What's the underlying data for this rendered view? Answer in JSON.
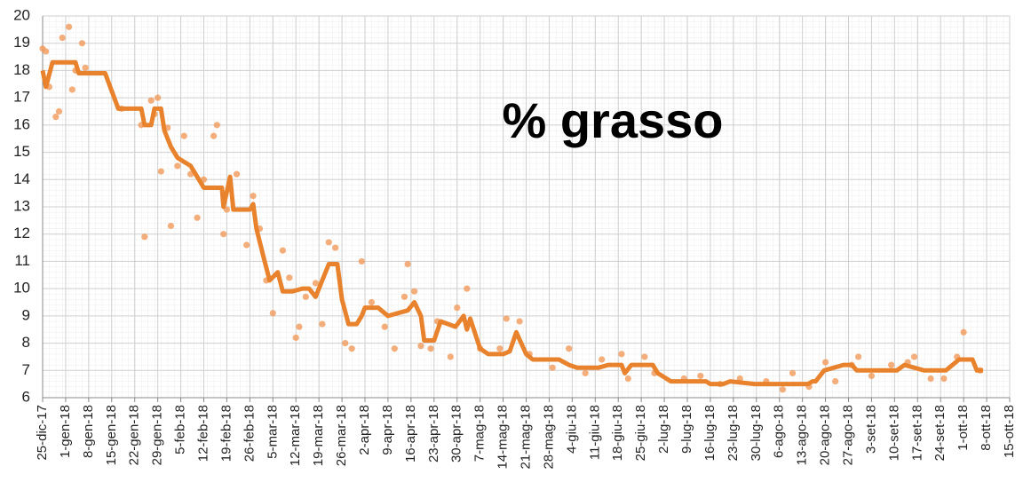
{
  "chart_data": {
    "type": "line",
    "title": "% grasso",
    "xlim": [
      0,
      294
    ],
    "ylim": [
      6,
      20
    ],
    "yticks": [
      6,
      7,
      8,
      9,
      10,
      11,
      12,
      13,
      14,
      15,
      16,
      17,
      18,
      19,
      20
    ],
    "xticks": [
      {
        "value": 0,
        "label": "25-dic-17"
      },
      {
        "value": 7,
        "label": "1-gen-18"
      },
      {
        "value": 14,
        "label": "8-gen-18"
      },
      {
        "value": 21,
        "label": "15-gen-18"
      },
      {
        "value": 28,
        "label": "22-gen-18"
      },
      {
        "value": 35,
        "label": "29-gen-18"
      },
      {
        "value": 42,
        "label": "5-feb-18"
      },
      {
        "value": 49,
        "label": "12-feb-18"
      },
      {
        "value": 56,
        "label": "19-feb-18"
      },
      {
        "value": 63,
        "label": "26-feb-18"
      },
      {
        "value": 70,
        "label": "5-mar-18"
      },
      {
        "value": 77,
        "label": "12-mar-18"
      },
      {
        "value": 84,
        "label": "19-mar-18"
      },
      {
        "value": 91,
        "label": "26-mar-18"
      },
      {
        "value": 98,
        "label": "2-apr-18"
      },
      {
        "value": 105,
        "label": "9-apr-18"
      },
      {
        "value": 112,
        "label": "16-apr-18"
      },
      {
        "value": 119,
        "label": "23-apr-18"
      },
      {
        "value": 126,
        "label": "30-apr-18"
      },
      {
        "value": 133,
        "label": "7-mag-18"
      },
      {
        "value": 140,
        "label": "14-mag-18"
      },
      {
        "value": 147,
        "label": "21-mag-18"
      },
      {
        "value": 154,
        "label": "28-mag-18"
      },
      {
        "value": 161,
        "label": "4-giu-18"
      },
      {
        "value": 168,
        "label": "11-giu-18"
      },
      {
        "value": 175,
        "label": "18-giu-18"
      },
      {
        "value": 182,
        "label": "25-giu-18"
      },
      {
        "value": 189,
        "label": "2-lug-18"
      },
      {
        "value": 196,
        "label": "9-lug-18"
      },
      {
        "value": 203,
        "label": "16-lug-18"
      },
      {
        "value": 210,
        "label": "23-lug-18"
      },
      {
        "value": 217,
        "label": "30-lug-18"
      },
      {
        "value": 224,
        "label": "6-ago-18"
      },
      {
        "value": 231,
        "label": "13-ago-18"
      },
      {
        "value": 238,
        "label": "20-ago-18"
      },
      {
        "value": 245,
        "label": "27-ago-18"
      },
      {
        "value": 252,
        "label": "3-set-18"
      },
      {
        "value": 259,
        "label": "10-set-18"
      },
      {
        "value": 266,
        "label": "17-set-18"
      },
      {
        "value": 273,
        "label": "24-set-18"
      },
      {
        "value": 280,
        "label": "1-ott-18"
      },
      {
        "value": 287,
        "label": "8-ott-18"
      },
      {
        "value": 294,
        "label": "15-ott-18"
      }
    ],
    "grid": true,
    "series": [
      {
        "type": "line",
        "color": "#e8822c",
        "x": [
          0,
          1,
          3,
          10,
          11,
          19,
          23,
          30,
          31,
          33,
          34,
          36,
          37,
          39,
          41,
          45,
          49,
          54.5,
          55,
          57,
          58,
          63,
          64,
          65,
          67.5,
          69,
          71.5,
          73,
          76,
          79,
          81,
          83,
          87,
          89.6,
          91,
          93,
          95.5,
          97,
          98,
          102,
          105,
          111,
          113,
          115,
          116,
          119,
          121,
          125.5,
          128,
          129,
          130,
          133,
          135.5,
          140,
          142,
          144,
          147,
          149,
          157,
          160,
          162.5,
          169,
          172,
          176,
          177,
          179,
          185.5,
          187,
          191,
          201.7,
          203,
          207,
          209,
          216.5,
          232.7,
          234,
          235,
          237.6,
          243.5,
          246,
          247.5,
          259.7,
          262,
          268,
          274.6,
          278.6,
          282.7,
          284,
          285.9
        ],
        "values": [
          18.0,
          17.4,
          18.3,
          18.3,
          17.9,
          17.9,
          16.6,
          16.6,
          16.0,
          16.0,
          16.6,
          16.6,
          15.8,
          15.2,
          14.8,
          14.5,
          13.7,
          13.7,
          13.0,
          14.1,
          12.9,
          12.9,
          13.1,
          12.2,
          11.0,
          10.3,
          10.6,
          9.9,
          9.9,
          10.0,
          10.0,
          9.7,
          10.9,
          10.9,
          9.6,
          8.7,
          8.7,
          9.0,
          9.3,
          9.3,
          9.0,
          9.2,
          9.5,
          9.0,
          8.1,
          8.1,
          8.8,
          8.6,
          9.0,
          8.5,
          8.9,
          7.8,
          7.6,
          7.6,
          7.7,
          8.4,
          7.6,
          7.4,
          7.4,
          7.2,
          7.1,
          7.1,
          7.2,
          7.2,
          6.9,
          7.2,
          7.2,
          6.9,
          6.6,
          6.6,
          6.5,
          6.5,
          6.6,
          6.5,
          6.5,
          6.6,
          6.6,
          7.0,
          7.2,
          7.2,
          7.0,
          7.0,
          7.2,
          7.0,
          7.0,
          7.4,
          7.4,
          7.0,
          7.0
        ]
      },
      {
        "type": "scatter",
        "color": "#f19a5a",
        "x": [
          0,
          1,
          2,
          4,
          5,
          6,
          8,
          9,
          10,
          12,
          13,
          24,
          30,
          31,
          33,
          34,
          35,
          36,
          38,
          39,
          41,
          43,
          45,
          47,
          49,
          52,
          53,
          55,
          56,
          59,
          62,
          64,
          66,
          68,
          70,
          73,
          75,
          77,
          78,
          80,
          83,
          85,
          87,
          89,
          92,
          94,
          97,
          100,
          104,
          107,
          110,
          111,
          113,
          115,
          118,
          120,
          124,
          126,
          129,
          133,
          139,
          141,
          145,
          148,
          155,
          160,
          165,
          170,
          176,
          178,
          183,
          186,
          195,
          200,
          206,
          212,
          220,
          225,
          228,
          233,
          238,
          241,
          246,
          248,
          252,
          258,
          263,
          265,
          270,
          274,
          278,
          280,
          285
        ],
        "values": [
          18.8,
          18.7,
          17.4,
          16.3,
          16.5,
          19.2,
          19.6,
          17.3,
          18.0,
          19.0,
          18.1,
          16.6,
          16.0,
          11.9,
          16.9,
          16.4,
          17.0,
          14.3,
          15.9,
          12.3,
          14.5,
          15.6,
          14.2,
          12.6,
          14.0,
          15.6,
          16.0,
          12.0,
          12.9,
          14.2,
          11.6,
          13.4,
          12.2,
          10.3,
          9.1,
          11.4,
          10.4,
          8.2,
          8.6,
          9.7,
          10.2,
          8.7,
          11.7,
          11.5,
          8.0,
          7.8,
          11.0,
          9.5,
          8.6,
          7.8,
          9.7,
          10.9,
          9.9,
          7.9,
          7.8,
          8.8,
          7.5,
          9.3,
          10.0,
          7.8,
          7.8,
          8.9,
          8.8,
          7.6,
          7.1,
          7.8,
          6.9,
          7.4,
          7.6,
          6.7,
          7.5,
          6.9,
          6.7,
          6.8,
          6.5,
          6.7,
          6.6,
          6.3,
          6.9,
          6.4,
          7.3,
          6.6,
          7.2,
          7.5,
          6.8,
          7.2,
          7.3,
          7.5,
          6.7,
          6.7,
          7.5,
          8.4,
          7.0
        ]
      }
    ]
  }
}
